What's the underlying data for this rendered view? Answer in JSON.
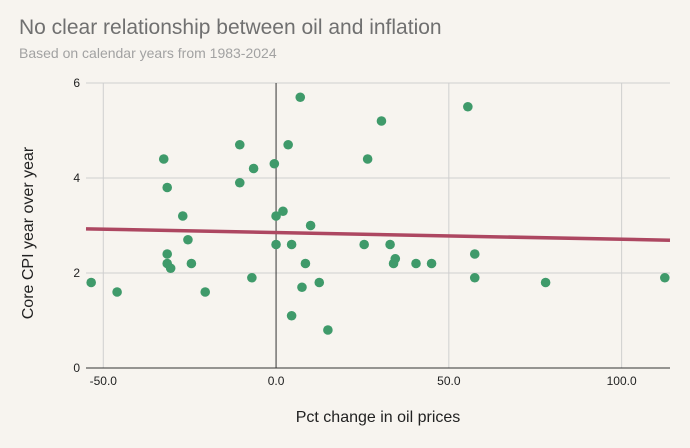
{
  "chart_data": {
    "type": "scatter",
    "title": "No clear relationship between oil and inflation",
    "subtitle": "Based on calendar years from 1983-2024",
    "xlabel": "Pct change in oil prices",
    "ylabel": "Core CPI year over year",
    "xlim": [
      -55,
      114
    ],
    "ylim": [
      0,
      6
    ],
    "xticks": [
      -50,
      0,
      50,
      100
    ],
    "xtick_labels": [
      "-50.0",
      "0.0",
      "50.0",
      "100.0"
    ],
    "yticks": [
      0,
      2,
      4,
      6
    ],
    "ytick_labels": [
      "0",
      "2",
      "4",
      "6"
    ],
    "grid": true,
    "legend": "none",
    "point_color": "#3f9a6a",
    "trendline_color": "#ad4761",
    "trendline": {
      "x": [
        -55,
        114
      ],
      "y": [
        2.93,
        2.69
      ]
    },
    "points": [
      {
        "x": -53.5,
        "y": 1.8
      },
      {
        "x": -46,
        "y": 1.6
      },
      {
        "x": -32.5,
        "y": 4.4
      },
      {
        "x": -31.5,
        "y": 3.8
      },
      {
        "x": -31.5,
        "y": 2.4
      },
      {
        "x": -31.5,
        "y": 2.2
      },
      {
        "x": -30.5,
        "y": 2.1
      },
      {
        "x": -27,
        "y": 3.2
      },
      {
        "x": -25.5,
        "y": 2.7
      },
      {
        "x": -24.5,
        "y": 2.2
      },
      {
        "x": -20.5,
        "y": 1.6
      },
      {
        "x": -10.5,
        "y": 4.7
      },
      {
        "x": -10.5,
        "y": 3.9
      },
      {
        "x": -6.5,
        "y": 4.2
      },
      {
        "x": -7,
        "y": 1.9
      },
      {
        "x": -0.5,
        "y": 4.3
      },
      {
        "x": 0,
        "y": 3.2
      },
      {
        "x": 0,
        "y": 2.6
      },
      {
        "x": 2,
        "y": 3.3
      },
      {
        "x": 3.5,
        "y": 4.7
      },
      {
        "x": 4.5,
        "y": 2.6
      },
      {
        "x": 4.5,
        "y": 1.1
      },
      {
        "x": 7,
        "y": 5.7
      },
      {
        "x": 7.5,
        "y": 1.7
      },
      {
        "x": 8.5,
        "y": 2.2
      },
      {
        "x": 10,
        "y": 3.0
      },
      {
        "x": 12.5,
        "y": 1.8
      },
      {
        "x": 15,
        "y": 0.8
      },
      {
        "x": 25.5,
        "y": 2.6
      },
      {
        "x": 26.5,
        "y": 4.4
      },
      {
        "x": 30.5,
        "y": 5.2
      },
      {
        "x": 33,
        "y": 2.6
      },
      {
        "x": 34,
        "y": 2.2
      },
      {
        "x": 34.5,
        "y": 2.3
      },
      {
        "x": 40.5,
        "y": 2.2
      },
      {
        "x": 45,
        "y": 2.2
      },
      {
        "x": 55.5,
        "y": 5.5
      },
      {
        "x": 57.5,
        "y": 2.4
      },
      {
        "x": 57.5,
        "y": 1.9
      },
      {
        "x": 78,
        "y": 1.8
      },
      {
        "x": 112.5,
        "y": 1.9
      }
    ]
  }
}
